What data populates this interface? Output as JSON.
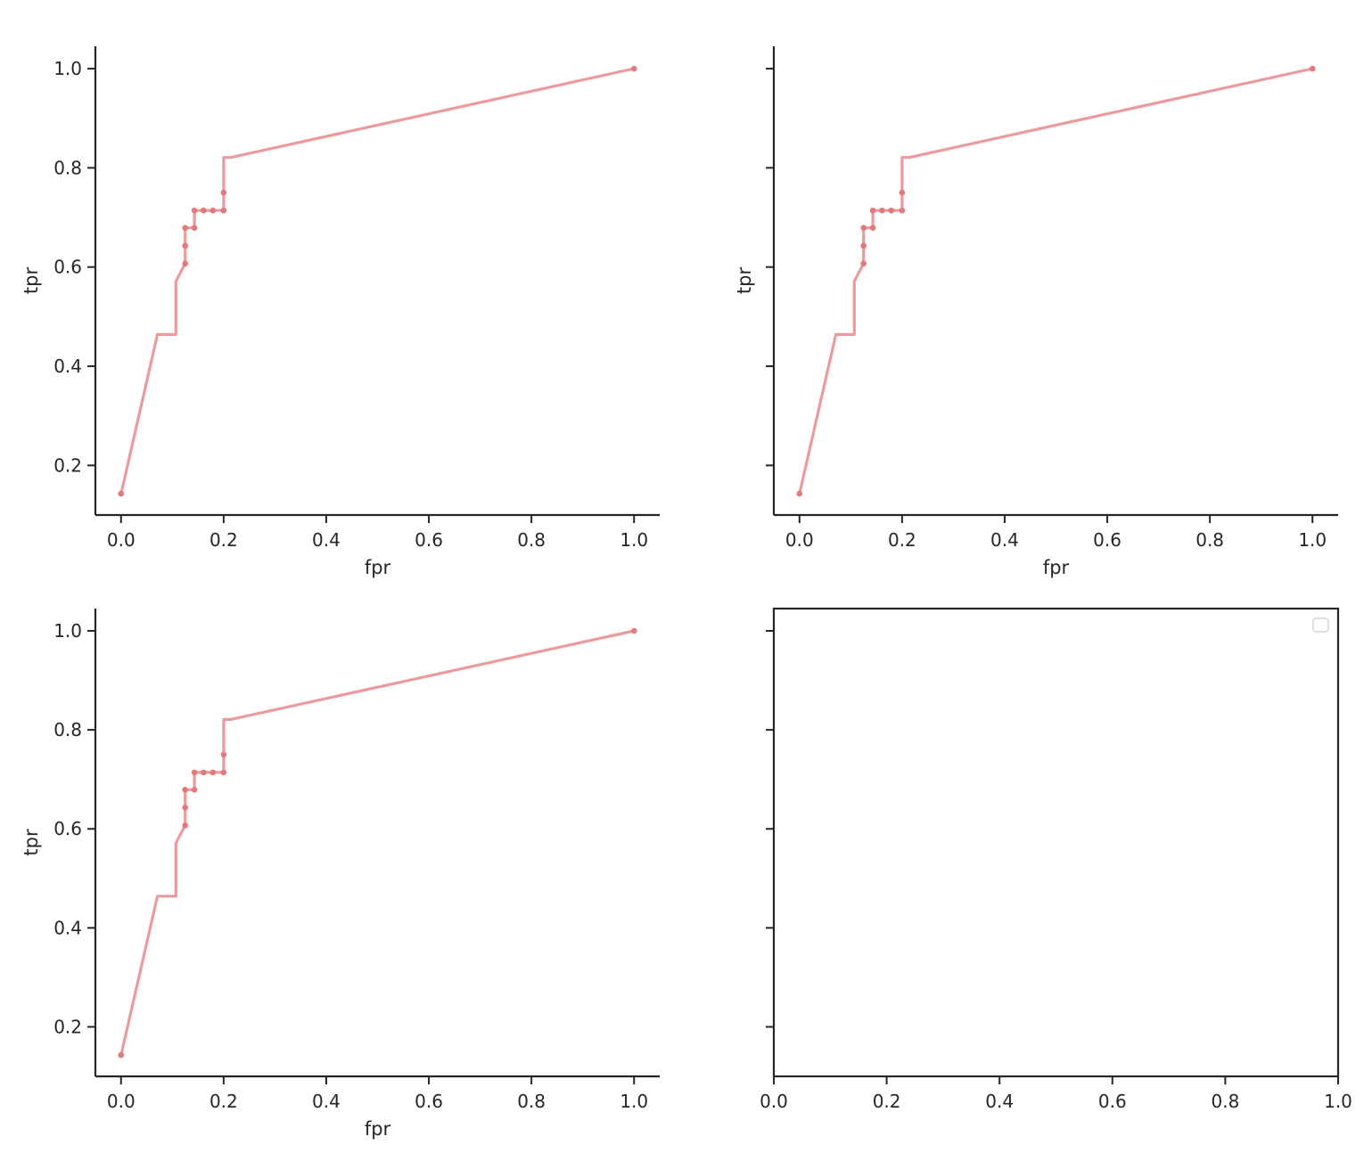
{
  "chart_data": [
    {
      "type": "line",
      "panel": "top-left",
      "xlabel": "fpr",
      "ylabel": "tpr",
      "xlim": [
        -0.05,
        1.05
      ],
      "ylim": [
        0.1,
        1.045
      ],
      "xticks": [
        "0.0",
        "0.2",
        "0.4",
        "0.6",
        "0.8",
        "1.0"
      ],
      "yticks": [
        "0.2",
        "0.4",
        "0.6",
        "0.8",
        "1.0"
      ],
      "spines": "left-bottom",
      "color": "#e88a8c",
      "line": {
        "x": [
          0.0,
          0.071,
          0.107,
          0.107,
          0.125,
          0.125,
          0.125,
          0.143,
          0.143,
          0.161,
          0.179,
          0.196,
          0.2,
          0.2,
          0.2,
          0.214,
          1.0
        ],
        "y": [
          0.143,
          0.464,
          0.464,
          0.571,
          0.607,
          0.643,
          0.679,
          0.679,
          0.714,
          0.714,
          0.714,
          0.714,
          0.714,
          0.75,
          0.821,
          0.821,
          1.0
        ]
      },
      "points": {
        "x": [
          0.0,
          0.125,
          0.125,
          0.125,
          0.143,
          0.143,
          0.161,
          0.179,
          0.2,
          0.2,
          1.0
        ],
        "y": [
          0.143,
          0.607,
          0.643,
          0.679,
          0.679,
          0.714,
          0.714,
          0.714,
          0.714,
          0.75,
          1.0
        ]
      }
    },
    {
      "type": "line",
      "panel": "top-right",
      "xlabel": "fpr",
      "ylabel": "tpr",
      "xlim": [
        -0.05,
        1.05
      ],
      "ylim": [
        0.1,
        1.045
      ],
      "xticks": [
        "0.0",
        "0.2",
        "0.4",
        "0.6",
        "0.8",
        "1.0"
      ],
      "yticks": [
        "",
        "",
        "",
        "",
        ""
      ],
      "spines": "left-bottom",
      "color": "#e88a8c",
      "line": {
        "x": [
          0.0,
          0.071,
          0.107,
          0.107,
          0.125,
          0.125,
          0.125,
          0.143,
          0.143,
          0.161,
          0.179,
          0.196,
          0.2,
          0.2,
          0.2,
          0.214,
          1.0
        ],
        "y": [
          0.143,
          0.464,
          0.464,
          0.571,
          0.607,
          0.643,
          0.679,
          0.679,
          0.714,
          0.714,
          0.714,
          0.714,
          0.714,
          0.75,
          0.821,
          0.821,
          1.0
        ]
      },
      "points": {
        "x": [
          0.0,
          0.125,
          0.125,
          0.125,
          0.143,
          0.143,
          0.161,
          0.179,
          0.2,
          0.2,
          1.0
        ],
        "y": [
          0.143,
          0.607,
          0.643,
          0.679,
          0.679,
          0.714,
          0.714,
          0.714,
          0.714,
          0.75,
          1.0
        ]
      }
    },
    {
      "type": "line",
      "panel": "bottom-left",
      "xlabel": "fpr",
      "ylabel": "tpr",
      "xlim": [
        -0.05,
        1.05
      ],
      "ylim": [
        0.1,
        1.045
      ],
      "xticks": [
        "0.0",
        "0.2",
        "0.4",
        "0.6",
        "0.8",
        "1.0"
      ],
      "yticks": [
        "0.2",
        "0.4",
        "0.6",
        "0.8",
        "1.0"
      ],
      "spines": "left-bottom",
      "color": "#e88a8c",
      "line": {
        "x": [
          0.0,
          0.071,
          0.107,
          0.107,
          0.125,
          0.125,
          0.125,
          0.143,
          0.143,
          0.161,
          0.179,
          0.196,
          0.2,
          0.2,
          0.2,
          0.214,
          1.0
        ],
        "y": [
          0.143,
          0.464,
          0.464,
          0.571,
          0.607,
          0.643,
          0.679,
          0.679,
          0.714,
          0.714,
          0.714,
          0.714,
          0.714,
          0.75,
          0.821,
          0.821,
          1.0
        ]
      },
      "points": {
        "x": [
          0.0,
          0.125,
          0.125,
          0.125,
          0.143,
          0.143,
          0.161,
          0.179,
          0.2,
          0.2,
          1.0
        ],
        "y": [
          0.143,
          0.607,
          0.643,
          0.679,
          0.679,
          0.714,
          0.714,
          0.714,
          0.714,
          0.75,
          1.0
        ]
      }
    },
    {
      "type": "line",
      "panel": "bottom-right",
      "xlabel": "",
      "ylabel": "",
      "xlim": [
        0.0,
        1.0
      ],
      "ylim": [
        0.1,
        1.045
      ],
      "xticks": [
        "0.0",
        "0.2",
        "0.4",
        "0.6",
        "0.8",
        "1.0"
      ],
      "yticks": [
        "",
        "",
        "",
        "",
        ""
      ],
      "spines": "all",
      "legend": "top-right",
      "legend_entries": [],
      "color": "#e88a8c"
    }
  ]
}
